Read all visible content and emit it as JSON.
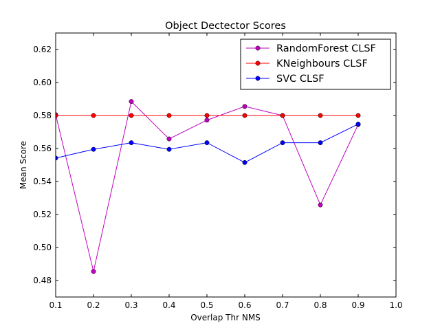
{
  "chart_data": {
    "type": "line",
    "title": "Object Dectector Scores",
    "xlabel": "Overlap Thr NMS",
    "ylabel": "Mean Score",
    "xlim": [
      0.1,
      1.0
    ],
    "ylim": [
      0.47,
      0.63
    ],
    "xticks": [
      "0.1",
      "0.2",
      "0.3",
      "0.4",
      "0.5",
      "0.6",
      "0.7",
      "0.8",
      "0.9",
      "1.0"
    ],
    "yticks": [
      "0.48",
      "0.50",
      "0.52",
      "0.54",
      "0.56",
      "0.58",
      "0.60",
      "0.62"
    ],
    "grid": false,
    "legend": "top-right",
    "x": [
      0.1,
      0.2,
      0.3,
      0.4,
      0.5,
      0.6,
      0.7,
      0.8,
      0.9
    ],
    "series": [
      {
        "name": "RandomForest CLSF",
        "color": "#bf00bf",
        "values": [
          0.5805,
          0.4855,
          0.5885,
          0.5658,
          0.5772,
          0.5855,
          0.58,
          0.5258,
          0.5745
        ]
      },
      {
        "name": "KNeighbours CLSF",
        "color": "#ff0000",
        "values": [
          0.58,
          0.58,
          0.58,
          0.58,
          0.58,
          0.58,
          0.58,
          0.58,
          0.58
        ]
      },
      {
        "name": "SVC CLSF",
        "color": "#0000ff",
        "values": [
          0.5542,
          0.5595,
          0.5635,
          0.5595,
          0.5635,
          0.5515,
          0.5635,
          0.5635,
          0.5748
        ]
      }
    ]
  }
}
